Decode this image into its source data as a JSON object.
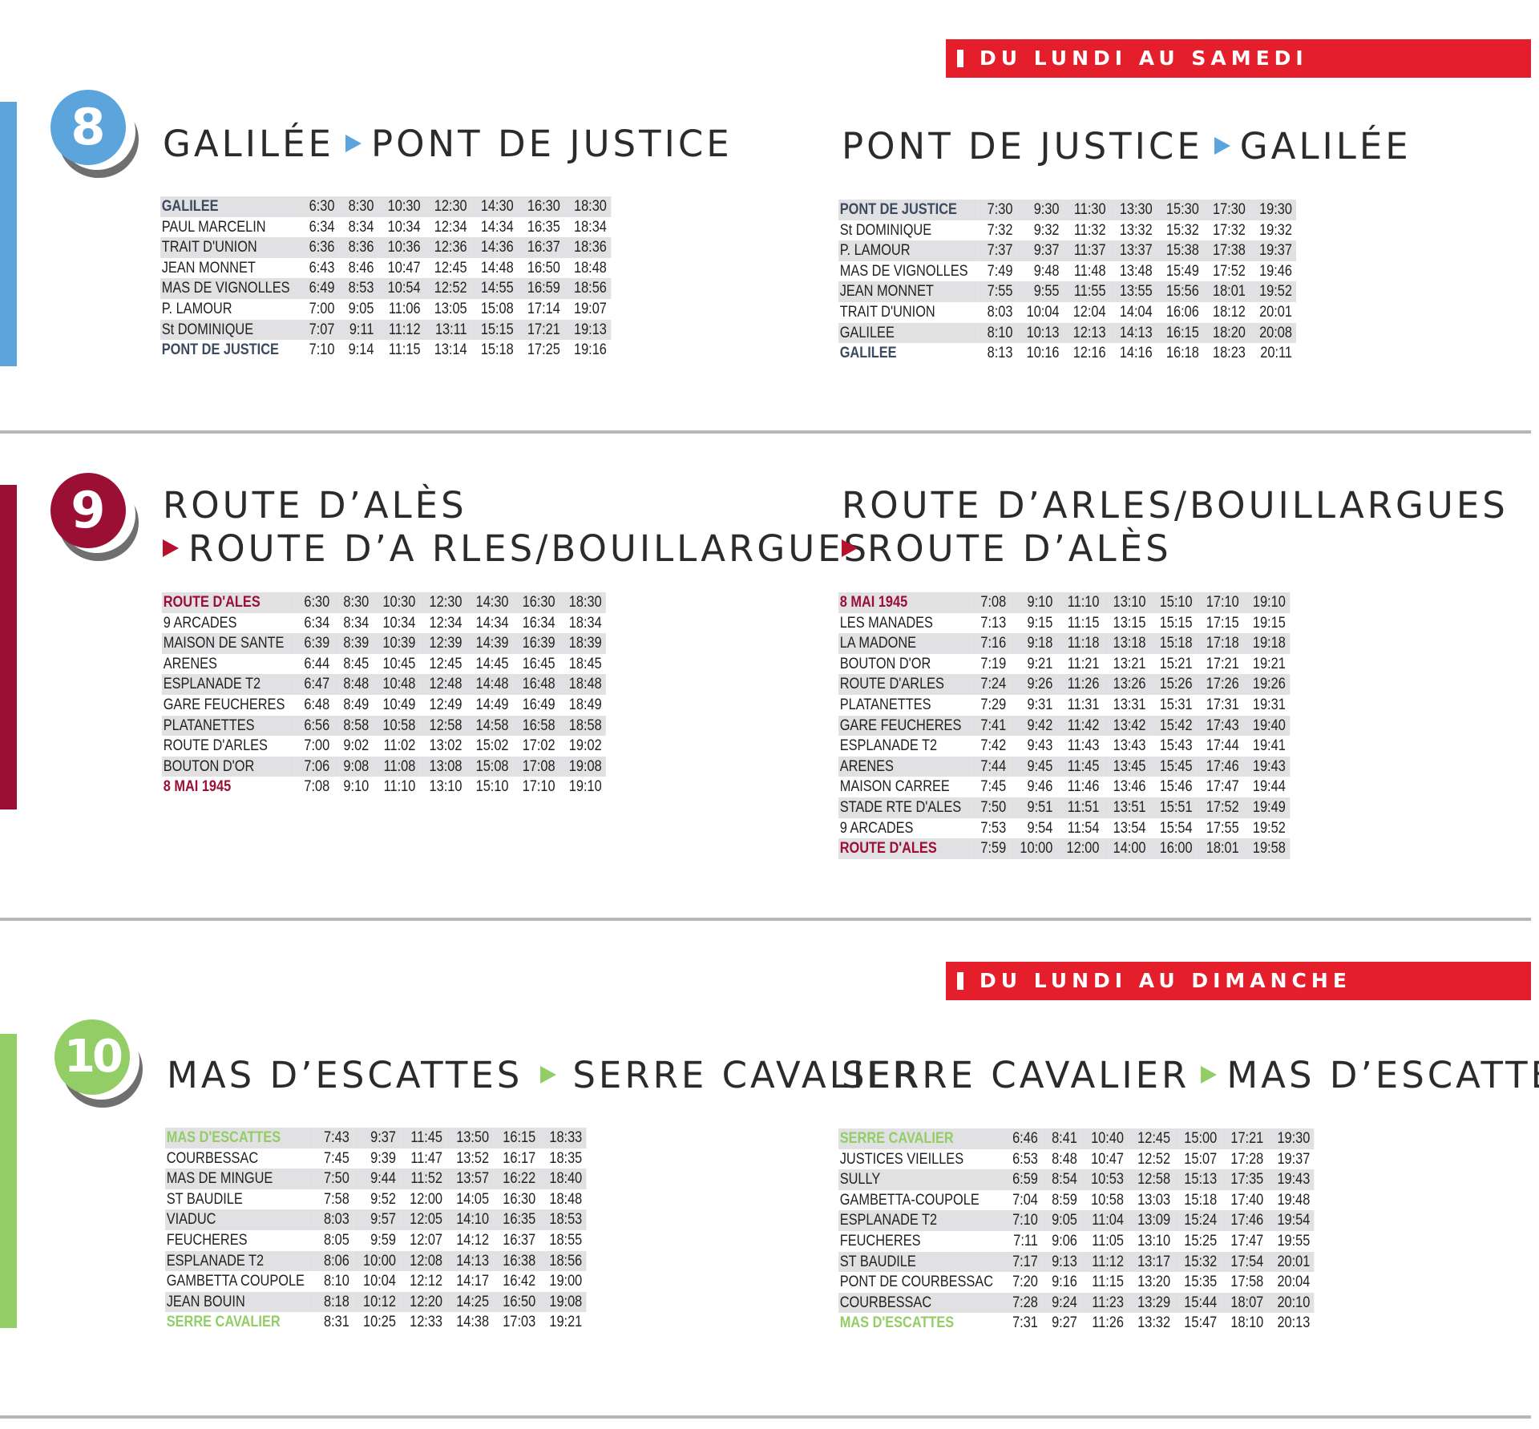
{
  "banners": {
    "mon_sat": "DU LUNDI AU SAMEDI",
    "mon_sun": "DU LUNDI AU DIMANCHE"
  },
  "colors": {
    "line8": "#5ba4dc",
    "line9": "#9c0f35",
    "line10": "#92cd66",
    "banner": "#e41f2b",
    "arrow8": "#5ba4dc",
    "arrow9": "#b5122e",
    "arrow10": "#92cd66"
  },
  "lines": [
    {
      "number": "8",
      "outbound": {
        "title_a": "GALILÉE",
        "title_b": "PONT DE JUSTICE",
        "rows": [
          {
            "stop": "GALILEE",
            "times": [
              "6:30",
              "8:30",
              "10:30",
              "12:30",
              "14:30",
              "16:30",
              "18:30"
            ]
          },
          {
            "stop": "PAUL MARCELIN",
            "times": [
              "6:34",
              "8:34",
              "10:34",
              "12:34",
              "14:34",
              "16:35",
              "18:34"
            ]
          },
          {
            "stop": "TRAIT D'UNION",
            "times": [
              "6:36",
              "8:36",
              "10:36",
              "12:36",
              "14:36",
              "16:37",
              "18:36"
            ]
          },
          {
            "stop": "JEAN MONNET",
            "times": [
              "6:43",
              "8:46",
              "10:47",
              "12:45",
              "14:48",
              "16:50",
              "18:48"
            ]
          },
          {
            "stop": "MAS DE VIGNOLLES",
            "times": [
              "6:49",
              "8:53",
              "10:54",
              "12:52",
              "14:55",
              "16:59",
              "18:56"
            ]
          },
          {
            "stop": "P. LAMOUR",
            "times": [
              "7:00",
              "9:05",
              "11:06",
              "13:05",
              "15:08",
              "17:14",
              "19:07"
            ]
          },
          {
            "stop": "St DOMINIQUE",
            "times": [
              "7:07",
              "9:11",
              "11:12",
              "13:11",
              "15:15",
              "17:21",
              "19:13"
            ]
          },
          {
            "stop": "PONT DE JUSTICE",
            "times": [
              "7:10",
              "9:14",
              "11:15",
              "13:14",
              "15:18",
              "17:25",
              "19:16"
            ]
          }
        ]
      },
      "inbound": {
        "title_a": "PONT DE JUSTICE",
        "title_b": "GALILÉE",
        "rows": [
          {
            "stop": "PONT DE JUSTICE",
            "times": [
              "7:30",
              "9:30",
              "11:30",
              "13:30",
              "15:30",
              "17:30",
              "19:30"
            ]
          },
          {
            "stop": "St DOMINIQUE",
            "times": [
              "7:32",
              "9:32",
              "11:32",
              "13:32",
              "15:32",
              "17:32",
              "19:32"
            ]
          },
          {
            "stop": "P. LAMOUR",
            "times": [
              "7:37",
              "9:37",
              "11:37",
              "13:37",
              "15:38",
              "17:38",
              "19:37"
            ]
          },
          {
            "stop": "MAS DE VIGNOLLES",
            "times": [
              "7:49",
              "9:48",
              "11:48",
              "13:48",
              "15:49",
              "17:52",
              "19:46"
            ]
          },
          {
            "stop": " JEAN MONNET",
            "times": [
              "7:55",
              "9:55",
              "11:55",
              "13:55",
              "15:56",
              "18:01",
              "19:52"
            ]
          },
          {
            "stop": "TRAIT D'UNION",
            "times": [
              "8:03",
              "10:04",
              "12:04",
              "14:04",
              "16:06",
              "18:12",
              "20:01"
            ]
          },
          {
            "stop": "GALILEE",
            "times": [
              "8:10",
              "10:13",
              "12:13",
              "14:13",
              "16:15",
              "18:20",
              "20:08"
            ]
          },
          {
            "stop": "GALILEE",
            "times": [
              "8:13",
              "10:16",
              "12:16",
              "14:16",
              "16:18",
              "18:23",
              "20:11"
            ]
          }
        ]
      }
    },
    {
      "number": "9",
      "outbound": {
        "title_a": "ROUTE D’ALÈS",
        "title_b": "ROUTE D’A RLES/BOUILLARGUES",
        "rows": [
          {
            "stop": "ROUTE D'ALES",
            "times": [
              "6:30",
              "8:30",
              "10:30",
              "12:30",
              "14:30",
              "16:30",
              "18:30"
            ]
          },
          {
            "stop": "9 ARCADES",
            "times": [
              "6:34",
              "8:34",
              "10:34",
              "12:34",
              "14:34",
              "16:34",
              "18:34"
            ]
          },
          {
            "stop": "MAISON DE SANTE",
            "times": [
              "6:39",
              "8:39",
              "10:39",
              "12:39",
              "14:39",
              "16:39",
              "18:39"
            ]
          },
          {
            "stop": "ARENES",
            "times": [
              "6:44",
              "8:45",
              "10:45",
              "12:45",
              "14:45",
              "16:45",
              "18:45"
            ]
          },
          {
            "stop": "ESPLANADE T2",
            "times": [
              "6:47",
              "8:48",
              "10:48",
              "12:48",
              "14:48",
              "16:48",
              "18:48"
            ]
          },
          {
            "stop": "GARE FEUCHERES",
            "times": [
              "6:48",
              "8:49",
              "10:49",
              "12:49",
              "14:49",
              "16:49",
              "18:49"
            ]
          },
          {
            "stop": "PLATANETTES",
            "times": [
              "6:56",
              "8:58",
              "10:58",
              "12:58",
              "14:58",
              "16:58",
              "18:58"
            ]
          },
          {
            "stop": "ROUTE D'ARLES",
            "times": [
              "7:00",
              "9:02",
              "11:02",
              "13:02",
              "15:02",
              "17:02",
              "19:02"
            ]
          },
          {
            "stop": "BOUTON D'OR",
            "times": [
              "7:06",
              "9:08",
              "11:08",
              "13:08",
              "15:08",
              "17:08",
              "19:08"
            ]
          },
          {
            "stop": "8 MAI 1945",
            "times": [
              "7:08",
              "9:10",
              "11:10",
              "13:10",
              "15:10",
              "17:10",
              "19:10"
            ]
          }
        ]
      },
      "inbound": {
        "title_a": "ROUTE D’ARLES/BOUILLARGUES",
        "title_b": "ROUTE D’ALÈS",
        "rows": [
          {
            "stop": "8 MAI 1945",
            "times": [
              "7:08",
              "9:10",
              "11:10",
              "13:10",
              "15:10",
              "17:10",
              "19:10"
            ]
          },
          {
            "stop": "LES MANADES",
            "times": [
              "7:13",
              "9:15",
              "11:15",
              "13:15",
              "15:15",
              "17:15",
              "19:15"
            ]
          },
          {
            "stop": "LA MADONE",
            "times": [
              "7:16",
              "9:18",
              "11:18",
              "13:18",
              "15:18",
              "17:18",
              "19:18"
            ]
          },
          {
            "stop": "BOUTON D'OR",
            "times": [
              "7:19",
              "9:21",
              "11:21",
              "13:21",
              "15:21",
              "17:21",
              "19:21"
            ]
          },
          {
            "stop": "ROUTE D'ARLES",
            "times": [
              "7:24",
              "9:26",
              "11:26",
              "13:26",
              "15:26",
              "17:26",
              "19:26"
            ]
          },
          {
            "stop": "PLATANETTES",
            "times": [
              "7:29",
              "9:31",
              "11:31",
              "13:31",
              "15:31",
              "17:31",
              "19:31"
            ]
          },
          {
            "stop": "GARE FEUCHERES",
            "times": [
              "7:41",
              "9:42",
              "11:42",
              "13:42",
              "15:42",
              "17:43",
              "19:40"
            ]
          },
          {
            "stop": "ESPLANADE T2",
            "times": [
              "7:42",
              "9:43",
              "11:43",
              "13:43",
              "15:43",
              "17:44",
              "19:41"
            ]
          },
          {
            "stop": "ARENES",
            "times": [
              "7:44",
              "9:45",
              "11:45",
              "13:45",
              "15:45",
              "17:46",
              "19:43"
            ]
          },
          {
            "stop": "MAISON CARREE",
            "times": [
              "7:45",
              "9:46",
              "11:46",
              "13:46",
              "15:46",
              "17:47",
              "19:44"
            ]
          },
          {
            "stop": "STADE RTE D'ALES",
            "times": [
              "7:50",
              "9:51",
              "11:51",
              "13:51",
              "15:51",
              "17:52",
              "19:49"
            ]
          },
          {
            "stop": "9 ARCADES",
            "times": [
              "7:53",
              "9:54",
              "11:54",
              "13:54",
              "15:54",
              "17:55",
              "19:52"
            ]
          },
          {
            "stop": "ROUTE D'ALES",
            "times": [
              "7:59",
              "10:00",
              "12:00",
              "14:00",
              "16:00",
              "18:01",
              "19:58"
            ]
          }
        ]
      }
    },
    {
      "number": "10",
      "outbound": {
        "title_a": "MAS D’ESCATTES",
        "title_b": "SERRE CAVALIER",
        "rows": [
          {
            "stop": "MAS D'ESCATTES",
            "times": [
              "7:43",
              "9:37",
              "11:45",
              "13:50",
              "16:15",
              "18:33"
            ]
          },
          {
            "stop": "COURBESSAC",
            "times": [
              "7:45",
              "9:39",
              "11:47",
              "13:52",
              "16:17",
              "18:35"
            ]
          },
          {
            "stop": "MAS DE MINGUE",
            "times": [
              "7:50",
              "9:44",
              "11:52",
              "13:57",
              "16:22",
              "18:40"
            ]
          },
          {
            "stop": "ST BAUDILE",
            "times": [
              "7:58",
              "9:52",
              "12:00",
              "14:05",
              "16:30",
              "18:48"
            ]
          },
          {
            "stop": "VIADUC",
            "times": [
              "8:03",
              "9:57",
              "12:05",
              "14:10",
              "16:35",
              "18:53"
            ]
          },
          {
            "stop": "FEUCHERES",
            "times": [
              "8:05",
              "9:59",
              "12:07",
              "14:12",
              "16:37",
              "18:55"
            ]
          },
          {
            "stop": "ESPLANADE T2",
            "times": [
              "8:06",
              "10:00",
              "12:08",
              "14:13",
              "16:38",
              "18:56"
            ]
          },
          {
            "stop": "GAMBETTA COUPOLE",
            "times": [
              "8:10",
              "10:04",
              "12:12",
              "14:17",
              "16:42",
              "19:00"
            ]
          },
          {
            "stop": "JEAN BOUIN",
            "times": [
              "8:18",
              "10:12",
              "12:20",
              "14:25",
              "16:50",
              "19:08"
            ]
          },
          {
            "stop": "SERRE CAVALIER",
            "times": [
              "8:31",
              "10:25",
              "12:33",
              "14:38",
              "17:03",
              "19:21"
            ]
          }
        ]
      },
      "inbound": {
        "title_a": "SERRE CAVALIER",
        "title_b": "MAS D’ESCATTES",
        "rows": [
          {
            "stop": "SERRE CAVALIER",
            "times": [
              "6:46",
              "8:41",
              "10:40",
              "12:45",
              "15:00",
              "17:21",
              "19:30"
            ]
          },
          {
            "stop": "JUSTICES VIEILLES",
            "times": [
              "6:53",
              "8:48",
              "10:47",
              "12:52",
              "15:07",
              "17:28",
              "19:37"
            ]
          },
          {
            "stop": "SULLY",
            "times": [
              "6:59",
              "8:54",
              "10:53",
              "12:58",
              "15:13",
              "17:35",
              "19:43"
            ]
          },
          {
            "stop": "GAMBETTA-COUPOLE",
            "times": [
              "7:04",
              "8:59",
              "10:58",
              "13:03",
              "15:18",
              "17:40",
              "19:48"
            ]
          },
          {
            "stop": "ESPLANADE T2",
            "times": [
              "7:10",
              "9:05",
              "11:04",
              "13:09",
              "15:24",
              "17:46",
              "19:54"
            ]
          },
          {
            "stop": "FEUCHERES",
            "times": [
              "7:11",
              "9:06",
              "11:05",
              "13:10",
              "15:25",
              "17:47",
              "19:55"
            ]
          },
          {
            "stop": "ST BAUDILE",
            "times": [
              "7:17",
              "9:13",
              "11:12",
              "13:17",
              "15:32",
              "17:54",
              "20:01"
            ]
          },
          {
            "stop": "PONT DE COURBESSAC",
            "times": [
              "7:20",
              "9:16",
              "11:15",
              "13:20",
              "15:35",
              "17:58",
              "20:04"
            ]
          },
          {
            "stop": "COURBESSAC",
            "times": [
              "7:28",
              "9:24",
              "11:23",
              "13:29",
              "15:44",
              "18:07",
              "20:10"
            ]
          },
          {
            "stop": "MAS D'ESCATTES",
            "times": [
              "7:31",
              "9:27",
              "11:26",
              "13:32",
              "15:47",
              "18:10",
              "20:13"
            ]
          }
        ]
      }
    }
  ]
}
